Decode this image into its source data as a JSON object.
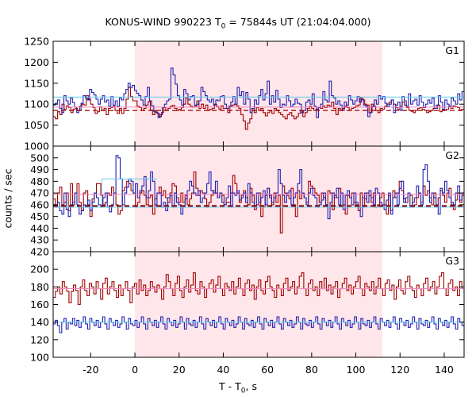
{
  "chart_data": {
    "type": "line",
    "title": {
      "prefix": "KONUS-WIND 990223 T",
      "sub": "0",
      "suffix": " = 75844s UT (21:04:04.000)"
    },
    "xlabel": {
      "prefix": "T - T",
      "sub": "0",
      "suffix": ", s"
    },
    "ylabel": "counts / sec",
    "xlim": [
      -37,
      149
    ],
    "xticks": [
      -20,
      0,
      20,
      40,
      60,
      80,
      100,
      120,
      140
    ],
    "shaded_interval": [
      0,
      112
    ],
    "colors": {
      "red": "#a00000",
      "blue": "#2020b0",
      "pink": "#ee88bb",
      "cyan": "#66ccee",
      "shade": "#ffe6ea",
      "darkred": "#800000"
    },
    "panels": [
      {
        "name": "G1",
        "ylim": [
          1000,
          1250
        ],
        "yticks": [
          1000,
          1050,
          1100,
          1150,
          1200,
          1250
        ],
        "red_values": [
          1070,
          1065,
          1082,
          1075,
          1100,
          1088,
          1096,
          1092,
          1080,
          1088,
          1090,
          1085,
          1095,
          1100,
          1098,
          1120,
          1112,
          1100,
          1092,
          1078,
          1082,
          1094,
          1085,
          1090,
          1075,
          1090,
          1092,
          1095,
          1085,
          1078,
          1090,
          1078,
          1090,
          1112,
          1140,
          1118,
          1108,
          1108,
          1095,
          1092,
          1085,
          1090,
          1098,
          1106,
          1086,
          1075,
          1085,
          1078,
          1070,
          1080,
          1092,
          1085,
          1090,
          1095,
          1097,
          1090,
          1085,
          1088,
          1092,
          1100,
          1115,
          1100,
          1095,
          1093,
          1095,
          1108,
          1090,
          1100,
          1090,
          1098,
          1085,
          1088,
          1090,
          1100,
          1094,
          1088,
          1096,
          1090,
          1090,
          1080,
          1095,
          1098,
          1100,
          1096,
          1090,
          1075,
          1060,
          1040,
          1055,
          1065,
          1090,
          1080,
          1092,
          1085,
          1090,
          1080,
          1072,
          1080,
          1084,
          1078,
          1090,
          1086,
          1080,
          1075,
          1070,
          1065,
          1075,
          1080,
          1072,
          1065,
          1070,
          1078,
          1085,
          1070,
          1080,
          1090,
          1095,
          1090,
          1085,
          1088,
          1092,
          1090,
          1096,
          1092,
          1098,
          1095,
          1105,
          1090,
          1075,
          1090,
          1085,
          1090,
          1095,
          1092,
          1085,
          1090,
          1092,
          1096,
          1098,
          1115,
          1110,
          1100,
          1098,
          1080,
          1100,
          1095,
          1085,
          1080,
          1090,
          1088,
          1095,
          1100,
          1105,
          1110,
          1100,
          1092,
          1088,
          1095,
          1105,
          1098,
          1092,
          1085,
          1083,
          1080,
          1085,
          1090,
          1092,
          1088,
          1085,
          1080,
          1082,
          1085,
          1090,
          1090,
          1098,
          1082,
          1086,
          1085,
          1088,
          1095,
          1090,
          1096,
          1094,
          1092,
          1086,
          1088
        ],
        "blue_values": [
          1098,
          1102,
          1110,
          1090,
          1080,
          1120,
          1108,
          1100,
          1115,
          1104,
          1093,
          1080,
          1085,
          1102,
          1120,
          1115,
          1110,
          1135,
          1128,
          1122,
          1112,
          1100,
          1112,
          1120,
          1105,
          1110,
          1095,
          1118,
          1098,
          1108,
          1095,
          1115,
          1110,
          1125,
          1135,
          1150,
          1140,
          1145,
          1133,
          1126,
          1120,
          1110,
          1098,
          1118,
          1140,
          1108,
          1096,
          1082,
          1080,
          1068,
          1075,
          1092,
          1100,
          1108,
          1112,
          1186,
          1170,
          1148,
          1120,
          1110,
          1098,
          1135,
          1125,
          1110,
          1118,
          1120,
          1098,
          1100,
          1108,
          1140,
          1130,
          1120,
          1110,
          1105,
          1112,
          1098,
          1110,
          1108,
          1118,
          1120,
          1100,
          1090,
          1095,
          1105,
          1118,
          1100,
          1140,
          1120,
          1130,
          1100,
          1128,
          1112,
          1080,
          1090,
          1110,
          1100,
          1120,
          1135,
          1110,
          1125,
          1155,
          1100,
          1120,
          1105,
          1133,
          1112,
          1092,
          1100,
          1098,
          1120,
          1108,
          1094,
          1100,
          1112,
          1102,
          1100,
          1080,
          1085,
          1105,
          1110,
          1100,
          1125,
          1095,
          1068,
          1092,
          1100,
          1130,
          1110,
          1105,
          1155,
          1120,
          1115,
          1100,
          1108,
          1098,
          1085,
          1105,
          1098,
          1120,
          1110,
          1100,
          1108,
          1118,
          1105,
          1112,
          1098,
          1095,
          1070,
          1080,
          1095,
          1110,
          1100,
          1120,
          1112,
          1118,
          1102,
          1095,
          1100,
          1110,
          1080,
          1098,
          1105,
          1085,
          1118,
          1108,
          1095,
          1125,
          1100,
          1108,
          1112,
          1098,
          1120,
          1105,
          1092,
          1100,
          1110,
          1102,
          1115,
          1090,
          1098,
          1120,
          1105,
          1088,
          1110,
          1100,
          1095,
          1115,
          1108,
          1100,
          1125,
          1110,
          1130
        ],
        "blue_mean": 1117,
        "pink_mean": 1093,
        "dashed_mean": 1085
      },
      {
        "name": "G2",
        "ylim": [
          420,
          510
        ],
        "yticks": [
          420,
          430,
          440,
          450,
          460,
          470,
          480,
          490,
          500
        ],
        "red_values": [
          465,
          458,
          470,
          475,
          460,
          462,
          470,
          455,
          478,
          460,
          470,
          478,
          462,
          455,
          470,
          472,
          460,
          450,
          465,
          470,
          478,
          478,
          468,
          460,
          462,
          470,
          468,
          475,
          470,
          460,
          452,
          455,
          472,
          475,
          480,
          478,
          472,
          470,
          458,
          462,
          470,
          472,
          468,
          460,
          466,
          468,
          452,
          465,
          470,
          475,
          468,
          472,
          466,
          462,
          470,
          478,
          476,
          466,
          462,
          470,
          462,
          468,
          460,
          465,
          470,
          488,
          474,
          468,
          472,
          470,
          465,
          458,
          462,
          468,
          472,
          470,
          466,
          470,
          468,
          460,
          462,
          462,
          470,
          485,
          478,
          470,
          462,
          468,
          472,
          466,
          460,
          474,
          468,
          456,
          460,
          470,
          450,
          458,
          468,
          474,
          466,
          460,
          470,
          462,
          468,
          436,
          476,
          470,
          468,
          465,
          474,
          460,
          450,
          472,
          465,
          470,
          466,
          462,
          480,
          476,
          474,
          470,
          468,
          462,
          470,
          466,
          460,
          472,
          470,
          456,
          468,
          466,
          474,
          470,
          460,
          452,
          468,
          466,
          470,
          462,
          460,
          455,
          470,
          458,
          465,
          470,
          468,
          462,
          470,
          458,
          460,
          466,
          470,
          460,
          452,
          468,
          455,
          472,
          466,
          470,
          480,
          472,
          465,
          462,
          470,
          468,
          458,
          460,
          466,
          470,
          462,
          476,
          468,
          472,
          466,
          460,
          470,
          458,
          466,
          472,
          468,
          462,
          470,
          474,
          460,
          456,
          464,
          470,
          462,
          468
        ],
        "blue_values": [
          460,
          458,
          462,
          455,
          452,
          470,
          456,
          450,
          460,
          462,
          470,
          460,
          452,
          455,
          460,
          458,
          464,
          455,
          462,
          470,
          466,
          460,
          458,
          466,
          470,
          458,
          454,
          460,
          470,
          502,
          500,
          482,
          460,
          470,
          475,
          482,
          480,
          470,
          478,
          466,
          472,
          476,
          484,
          466,
          472,
          488,
          480,
          460,
          470,
          470,
          458,
          462,
          455,
          466,
          468,
          458,
          470,
          462,
          460,
          452,
          458,
          465,
          472,
          480,
          476,
          470,
          468,
          472,
          462,
          466,
          470,
          478,
          488,
          472,
          470,
          480,
          466,
          470,
          462,
          460,
          466,
          476,
          458,
          470,
          468,
          472,
          464,
          466,
          470,
          462,
          478,
          470,
          462,
          458,
          470,
          462,
          466,
          472,
          460,
          474,
          468,
          462,
          466,
          470,
          490,
          478,
          468,
          462,
          470,
          472,
          460,
          466,
          470,
          478,
          490,
          470,
          466,
          460,
          470,
          474,
          468,
          466,
          458,
          460,
          464,
          470,
          460,
          448,
          462,
          470,
          466,
          474,
          460,
          470,
          456,
          468,
          472,
          466,
          460,
          470,
          462,
          458,
          450,
          466,
          470,
          462,
          472,
          466,
          460,
          474,
          470,
          462,
          460,
          456,
          464,
          470,
          452,
          466,
          470,
          460,
          474,
          480,
          462,
          466,
          470,
          458,
          462,
          466,
          476,
          470,
          460,
          490,
          494,
          480,
          462,
          470,
          466,
          460,
          452,
          474,
          470,
          480,
          472,
          466,
          462,
          460,
          470,
          476,
          464,
          470
        ],
        "blue_mean": 458,
        "blue_level_segment": {
          "x": [
            -15,
            10
          ],
          "value": 482
        },
        "pink_mean": 469,
        "dashed_mean": 459
      },
      {
        "name": "G3",
        "ylim": [
          100,
          220
        ],
        "yticks": [
          100,
          120,
          140,
          160,
          180,
          200
        ],
        "red_values": [
          168,
          175,
          180,
          172,
          186,
          180,
          175,
          162,
          175,
          182,
          176,
          160,
          180,
          188,
          176,
          170,
          184,
          180,
          172,
          186,
          178,
          166,
          184,
          190,
          172,
          180,
          186,
          176,
          168,
          182,
          170,
          178,
          186,
          176,
          162,
          180,
          184,
          172,
          188,
          176,
          182,
          170,
          176,
          186,
          180,
          174,
          182,
          178,
          166,
          180,
          194,
          186,
          178,
          170,
          184,
          192,
          176,
          168,
          180,
          188,
          174,
          182,
          196,
          176,
          172,
          186,
          180,
          168,
          178,
          184,
          188,
          174,
          182,
          192,
          178,
          170,
          184,
          180,
          176,
          186,
          172,
          180,
          190,
          178,
          170,
          184,
          188,
          176,
          182,
          166,
          180,
          188,
          176,
          172,
          186,
          192,
          180,
          176,
          168,
          182,
          178,
          170,
          184,
          190,
          176,
          180,
          186,
          172,
          180,
          192,
          196,
          178,
          170,
          184,
          188,
          176,
          180,
          170,
          186,
          178,
          190,
          176,
          182,
          172,
          180,
          186,
          168,
          178,
          184,
          190,
          176,
          182,
          172,
          180,
          186,
          192,
          178,
          170,
          184,
          180,
          176,
          186,
          172,
          180,
          190,
          178,
          170,
          184,
          188,
          176,
          182,
          166,
          180,
          188,
          176,
          172,
          186,
          192,
          180,
          176,
          168,
          182,
          178,
          170,
          184,
          190,
          176,
          180,
          186,
          172,
          180,
          192,
          196,
          178,
          170,
          184,
          188,
          176,
          180,
          170,
          186,
          178
        ],
        "blue_values": [
          138,
          142,
          136,
          128,
          140,
          144,
          132,
          140,
          138,
          144,
          136,
          142,
          134,
          140,
          146,
          138,
          132,
          144,
          140,
          136,
          142,
          134,
          140,
          146,
          138,
          132,
          144,
          140,
          136,
          142,
          134,
          138,
          146,
          140,
          132,
          144,
          138,
          136,
          142,
          134,
          140,
          146,
          138,
          132,
          144,
          140,
          136,
          142,
          134,
          140,
          146,
          138,
          132,
          144,
          140,
          136,
          142,
          134,
          138,
          146,
          140,
          132,
          144,
          138,
          136,
          142,
          134,
          140,
          146,
          138,
          132,
          144,
          140,
          136,
          142,
          134,
          140,
          146,
          138,
          132,
          144,
          140,
          136,
          142,
          134,
          138,
          146,
          140,
          132,
          144,
          138,
          136,
          142,
          134,
          140,
          146,
          138,
          132,
          144,
          140,
          136,
          142,
          134,
          140,
          146,
          138,
          132,
          144,
          140,
          136,
          142,
          134,
          138,
          146,
          140,
          132,
          144,
          138,
          136,
          142,
          134,
          140,
          146,
          138,
          132,
          144,
          140,
          136,
          142,
          134,
          140,
          146,
          138,
          132,
          144,
          140,
          136,
          142,
          134,
          138,
          146,
          140,
          132,
          144,
          138,
          136,
          142,
          134,
          140,
          146,
          138,
          132,
          144,
          140,
          136,
          142,
          134,
          140,
          146,
          138,
          132,
          144,
          140,
          136,
          142,
          134,
          138,
          146,
          140,
          132,
          144,
          138,
          136,
          142,
          134,
          140,
          146,
          138,
          132,
          144,
          140,
          136,
          142,
          134,
          140,
          146,
          138,
          132,
          144,
          140,
          136
        ],
        "blue_mean": 140,
        "pink_mean": 178
      }
    ]
  }
}
